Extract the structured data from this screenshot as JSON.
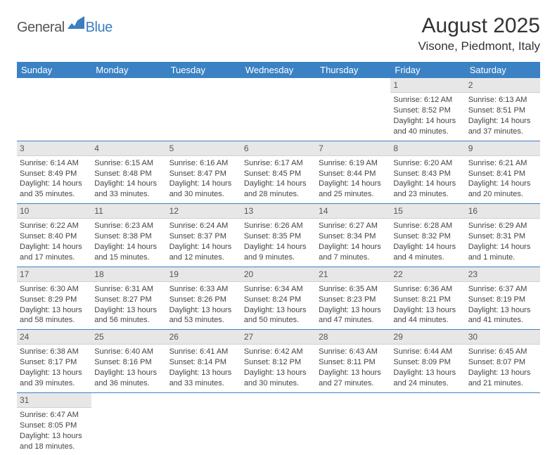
{
  "logo": {
    "general": "General",
    "blue": "Blue"
  },
  "title": "August 2025",
  "location": "Visone, Piedmont, Italy",
  "colors": {
    "header_bg": "#3b82c4",
    "header_fg": "#ffffff",
    "daynum_bg": "#e7e7e7",
    "row_border": "#3b82c4",
    "logo_blue": "#3b7fbf"
  },
  "daynames": [
    "Sunday",
    "Monday",
    "Tuesday",
    "Wednesday",
    "Thursday",
    "Friday",
    "Saturday"
  ],
  "weeks": [
    [
      {
        "n": "",
        "sr": "",
        "ss": "",
        "dl": ""
      },
      {
        "n": "",
        "sr": "",
        "ss": "",
        "dl": ""
      },
      {
        "n": "",
        "sr": "",
        "ss": "",
        "dl": ""
      },
      {
        "n": "",
        "sr": "",
        "ss": "",
        "dl": ""
      },
      {
        "n": "",
        "sr": "",
        "ss": "",
        "dl": ""
      },
      {
        "n": "1",
        "sr": "Sunrise: 6:12 AM",
        "ss": "Sunset: 8:52 PM",
        "dl": "Daylight: 14 hours and 40 minutes."
      },
      {
        "n": "2",
        "sr": "Sunrise: 6:13 AM",
        "ss": "Sunset: 8:51 PM",
        "dl": "Daylight: 14 hours and 37 minutes."
      }
    ],
    [
      {
        "n": "3",
        "sr": "Sunrise: 6:14 AM",
        "ss": "Sunset: 8:49 PM",
        "dl": "Daylight: 14 hours and 35 minutes."
      },
      {
        "n": "4",
        "sr": "Sunrise: 6:15 AM",
        "ss": "Sunset: 8:48 PM",
        "dl": "Daylight: 14 hours and 33 minutes."
      },
      {
        "n": "5",
        "sr": "Sunrise: 6:16 AM",
        "ss": "Sunset: 8:47 PM",
        "dl": "Daylight: 14 hours and 30 minutes."
      },
      {
        "n": "6",
        "sr": "Sunrise: 6:17 AM",
        "ss": "Sunset: 8:45 PM",
        "dl": "Daylight: 14 hours and 28 minutes."
      },
      {
        "n": "7",
        "sr": "Sunrise: 6:19 AM",
        "ss": "Sunset: 8:44 PM",
        "dl": "Daylight: 14 hours and 25 minutes."
      },
      {
        "n": "8",
        "sr": "Sunrise: 6:20 AM",
        "ss": "Sunset: 8:43 PM",
        "dl": "Daylight: 14 hours and 23 minutes."
      },
      {
        "n": "9",
        "sr": "Sunrise: 6:21 AM",
        "ss": "Sunset: 8:41 PM",
        "dl": "Daylight: 14 hours and 20 minutes."
      }
    ],
    [
      {
        "n": "10",
        "sr": "Sunrise: 6:22 AM",
        "ss": "Sunset: 8:40 PM",
        "dl": "Daylight: 14 hours and 17 minutes."
      },
      {
        "n": "11",
        "sr": "Sunrise: 6:23 AM",
        "ss": "Sunset: 8:38 PM",
        "dl": "Daylight: 14 hours and 15 minutes."
      },
      {
        "n": "12",
        "sr": "Sunrise: 6:24 AM",
        "ss": "Sunset: 8:37 PM",
        "dl": "Daylight: 14 hours and 12 minutes."
      },
      {
        "n": "13",
        "sr": "Sunrise: 6:26 AM",
        "ss": "Sunset: 8:35 PM",
        "dl": "Daylight: 14 hours and 9 minutes."
      },
      {
        "n": "14",
        "sr": "Sunrise: 6:27 AM",
        "ss": "Sunset: 8:34 PM",
        "dl": "Daylight: 14 hours and 7 minutes."
      },
      {
        "n": "15",
        "sr": "Sunrise: 6:28 AM",
        "ss": "Sunset: 8:32 PM",
        "dl": "Daylight: 14 hours and 4 minutes."
      },
      {
        "n": "16",
        "sr": "Sunrise: 6:29 AM",
        "ss": "Sunset: 8:31 PM",
        "dl": "Daylight: 14 hours and 1 minute."
      }
    ],
    [
      {
        "n": "17",
        "sr": "Sunrise: 6:30 AM",
        "ss": "Sunset: 8:29 PM",
        "dl": "Daylight: 13 hours and 58 minutes."
      },
      {
        "n": "18",
        "sr": "Sunrise: 6:31 AM",
        "ss": "Sunset: 8:27 PM",
        "dl": "Daylight: 13 hours and 56 minutes."
      },
      {
        "n": "19",
        "sr": "Sunrise: 6:33 AM",
        "ss": "Sunset: 8:26 PM",
        "dl": "Daylight: 13 hours and 53 minutes."
      },
      {
        "n": "20",
        "sr": "Sunrise: 6:34 AM",
        "ss": "Sunset: 8:24 PM",
        "dl": "Daylight: 13 hours and 50 minutes."
      },
      {
        "n": "21",
        "sr": "Sunrise: 6:35 AM",
        "ss": "Sunset: 8:23 PM",
        "dl": "Daylight: 13 hours and 47 minutes."
      },
      {
        "n": "22",
        "sr": "Sunrise: 6:36 AM",
        "ss": "Sunset: 8:21 PM",
        "dl": "Daylight: 13 hours and 44 minutes."
      },
      {
        "n": "23",
        "sr": "Sunrise: 6:37 AM",
        "ss": "Sunset: 8:19 PM",
        "dl": "Daylight: 13 hours and 41 minutes."
      }
    ],
    [
      {
        "n": "24",
        "sr": "Sunrise: 6:38 AM",
        "ss": "Sunset: 8:17 PM",
        "dl": "Daylight: 13 hours and 39 minutes."
      },
      {
        "n": "25",
        "sr": "Sunrise: 6:40 AM",
        "ss": "Sunset: 8:16 PM",
        "dl": "Daylight: 13 hours and 36 minutes."
      },
      {
        "n": "26",
        "sr": "Sunrise: 6:41 AM",
        "ss": "Sunset: 8:14 PM",
        "dl": "Daylight: 13 hours and 33 minutes."
      },
      {
        "n": "27",
        "sr": "Sunrise: 6:42 AM",
        "ss": "Sunset: 8:12 PM",
        "dl": "Daylight: 13 hours and 30 minutes."
      },
      {
        "n": "28",
        "sr": "Sunrise: 6:43 AM",
        "ss": "Sunset: 8:11 PM",
        "dl": "Daylight: 13 hours and 27 minutes."
      },
      {
        "n": "29",
        "sr": "Sunrise: 6:44 AM",
        "ss": "Sunset: 8:09 PM",
        "dl": "Daylight: 13 hours and 24 minutes."
      },
      {
        "n": "30",
        "sr": "Sunrise: 6:45 AM",
        "ss": "Sunset: 8:07 PM",
        "dl": "Daylight: 13 hours and 21 minutes."
      }
    ],
    [
      {
        "n": "31",
        "sr": "Sunrise: 6:47 AM",
        "ss": "Sunset: 8:05 PM",
        "dl": "Daylight: 13 hours and 18 minutes."
      },
      {
        "n": "",
        "sr": "",
        "ss": "",
        "dl": ""
      },
      {
        "n": "",
        "sr": "",
        "ss": "",
        "dl": ""
      },
      {
        "n": "",
        "sr": "",
        "ss": "",
        "dl": ""
      },
      {
        "n": "",
        "sr": "",
        "ss": "",
        "dl": ""
      },
      {
        "n": "",
        "sr": "",
        "ss": "",
        "dl": ""
      },
      {
        "n": "",
        "sr": "",
        "ss": "",
        "dl": ""
      }
    ]
  ]
}
